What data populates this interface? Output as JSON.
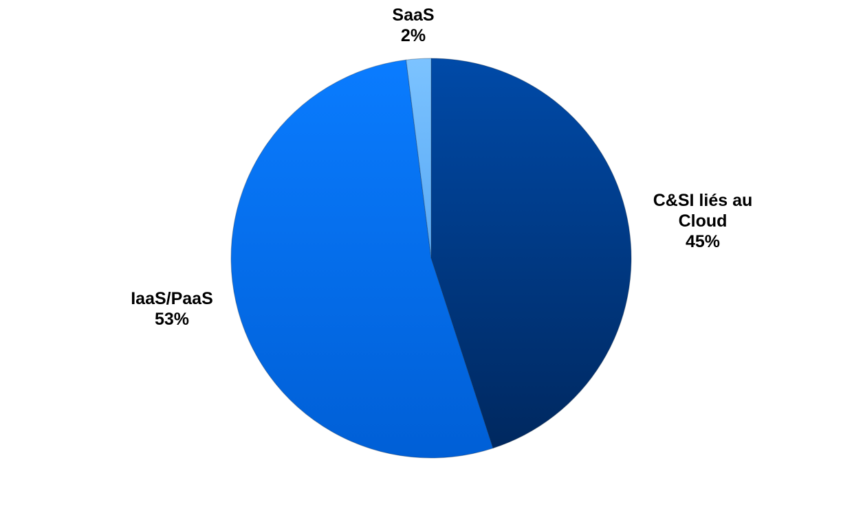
{
  "chart_data": {
    "type": "pie",
    "title": "",
    "start_angle_deg": 0,
    "direction": "clockwise",
    "slices": [
      {
        "label_lines": [
          "C&SI liés au",
          "Cloud"
        ],
        "percent_label": "45%",
        "value": 45,
        "color": "#003a8c",
        "color_light": "#004aa8",
        "color_dark": "#00285f",
        "label_side": "right"
      },
      {
        "label_lines": [
          "IaaS/PaaS"
        ],
        "percent_label": "53%",
        "value": 53,
        "color": "#0070f0",
        "color_light": "#0a7cff",
        "color_dark": "#005fd6",
        "label_side": "left"
      },
      {
        "label_lines": [
          "SaaS"
        ],
        "percent_label": "2%",
        "value": 2,
        "color": "#6ab8ff",
        "color_light": "#7cc3ff",
        "color_dark": "#58a9f5",
        "label_side": "top"
      }
    ]
  }
}
